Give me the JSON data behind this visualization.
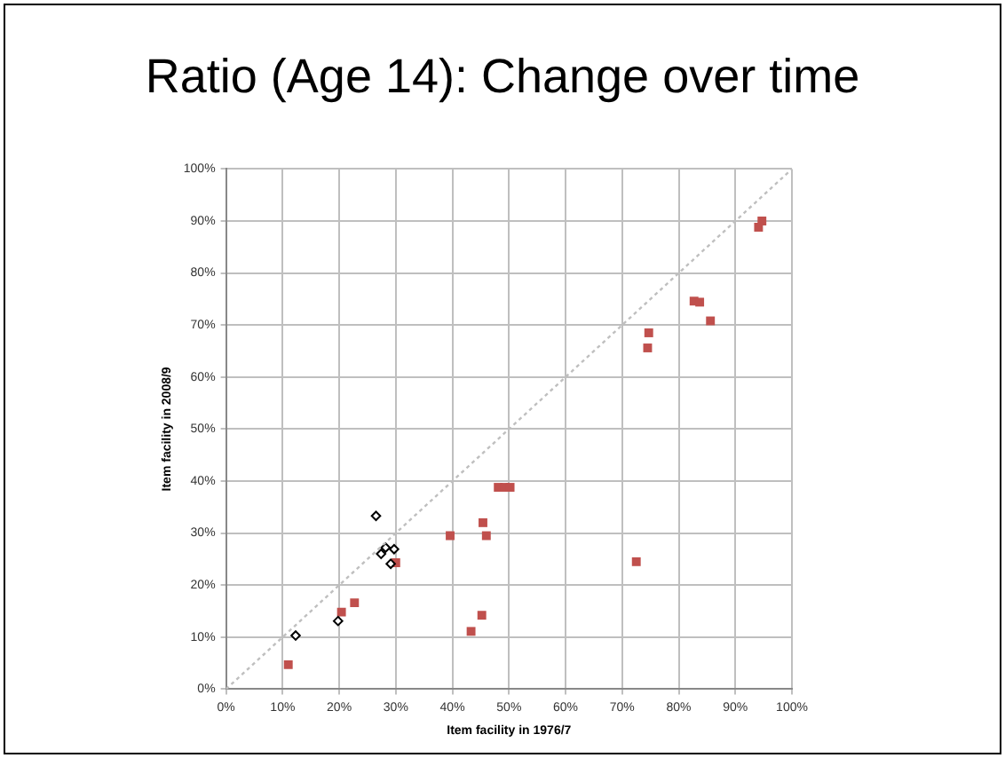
{
  "chart_data": {
    "type": "scatter",
    "title": "Ratio (Age 14): Change over time",
    "xlabel": "Item facility in 1976/7",
    "ylabel": "Item facility in 2008/9",
    "xlim": [
      0,
      100
    ],
    "ylim": [
      0,
      100
    ],
    "xticks": [
      {
        "value": 0,
        "label": "0%"
      },
      {
        "value": 10,
        "label": "10%"
      },
      {
        "value": 20,
        "label": "20%"
      },
      {
        "value": 30,
        "label": "30%"
      },
      {
        "value": 40,
        "label": "40%"
      },
      {
        "value": 50,
        "label": "50%"
      },
      {
        "value": 60,
        "label": "60%"
      },
      {
        "value": 70,
        "label": "70%"
      },
      {
        "value": 80,
        "label": "80%"
      },
      {
        "value": 90,
        "label": "90%"
      },
      {
        "value": 100,
        "label": "100%"
      }
    ],
    "yticks": [
      {
        "value": 0,
        "label": "0%"
      },
      {
        "value": 10,
        "label": "10%"
      },
      {
        "value": 20,
        "label": "20%"
      },
      {
        "value": 30,
        "label": "30%"
      },
      {
        "value": 40,
        "label": "40%"
      },
      {
        "value": 50,
        "label": "50%"
      },
      {
        "value": 60,
        "label": "60%"
      },
      {
        "value": 70,
        "label": "70%"
      },
      {
        "value": 80,
        "label": "80%"
      },
      {
        "value": 90,
        "label": "90%"
      },
      {
        "value": 100,
        "label": "100%"
      }
    ],
    "grid": true,
    "legend": false,
    "series": [
      {
        "type": "scatter",
        "marker": "square",
        "color": "#c0504d",
        "x": [
          11,
          20.4,
          22.7,
          30,
          39.6,
          43.3,
          45.2,
          45.4,
          46,
          48.1,
          49.2,
          50.2,
          72.5,
          74.7,
          74.5,
          82.7,
          83.7,
          85.6,
          94.1,
          94.7
        ],
        "values": [
          4.7,
          14.8,
          16.6,
          24.3,
          29.5,
          11.1,
          14.2,
          32,
          29.5,
          38.8,
          38.8,
          38.8,
          24.5,
          68.5,
          65.6,
          74.6,
          74.4,
          70.8,
          88.8,
          90
        ]
      },
      {
        "type": "scatter",
        "marker": "diamond",
        "color": "#000000",
        "x": [
          12.3,
          19.8,
          26.5,
          27.4,
          28.2,
          29.1,
          29.7
        ],
        "values": [
          10.3,
          13.1,
          33.3,
          26,
          27.2,
          24.1,
          26.9
        ]
      },
      {
        "type": "line",
        "marker": "none",
        "line_style": "dotted",
        "color": "#bfbfbf",
        "x": [
          0,
          100
        ],
        "values": [
          0,
          100
        ]
      }
    ]
  }
}
